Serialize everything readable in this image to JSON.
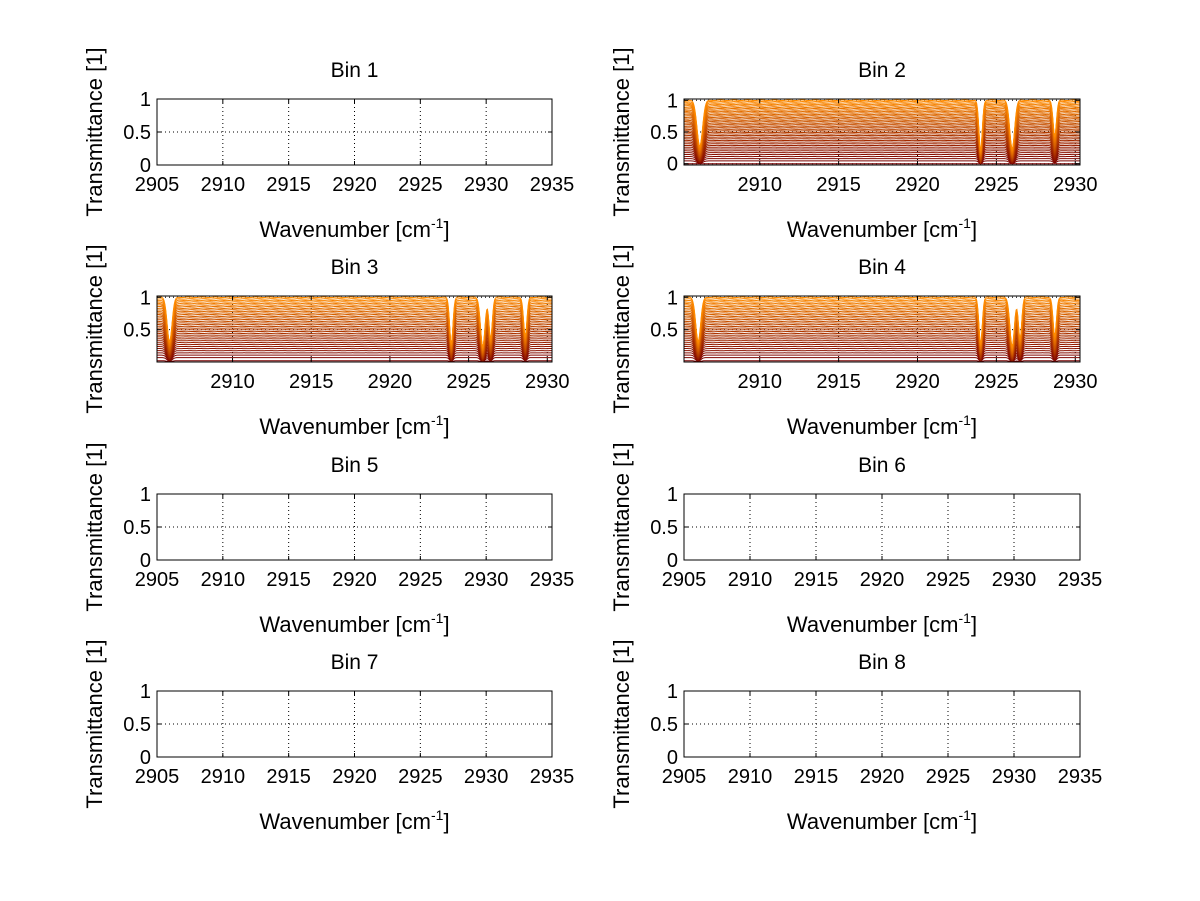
{
  "figure": {
    "background": "#ffffff",
    "colors": {
      "axis": "#000000",
      "low": "#7a0000",
      "high": "#ff8c00"
    }
  },
  "chart_data": [
    {
      "title": "Bin 1",
      "type": "line",
      "xlabel_main": "Wavenumber [cm",
      "xlabel_sup": "-1",
      "xlabel_end": "]",
      "ylabel": "Transmittance [1]",
      "xlim": [
        2905,
        2935
      ],
      "ylim": [
        0,
        1
      ],
      "xticks": [
        2905,
        2910,
        2915,
        2920,
        2925,
        2930,
        2935
      ],
      "yticks": [
        0,
        0.5,
        1
      ],
      "xtick_labels": [
        "2905",
        "2910",
        "2915",
        "2920",
        "2925",
        "2930",
        "2935"
      ],
      "ytick_labels": [
        "0",
        "0.5",
        "1"
      ],
      "series": []
    },
    {
      "title": "Bin 2",
      "type": "line",
      "xlabel_main": "Wavenumber [cm",
      "xlabel_sup": "-1",
      "xlabel_end": "]",
      "ylabel": "Transmittance [1]",
      "xlim": [
        2905.2,
        2930.3
      ],
      "ylim": [
        -0.02,
        1.02
      ],
      "xticks": [
        2910,
        2915,
        2920,
        2925,
        2930
      ],
      "yticks": [
        0,
        0.5,
        1
      ],
      "xtick_labels": [
        "2910",
        "2915",
        "2920",
        "2925",
        "2930"
      ],
      "ytick_labels": [
        "0",
        "0.5",
        "1"
      ],
      "series": {
        "count": 40,
        "min_level": 0.0,
        "max_level": 1.0,
        "absorption_lines": [
          {
            "center": 2906.2,
            "depth": 0.9,
            "width": 0.25
          },
          {
            "center": 2924.0,
            "depth": 1.0,
            "width": 0.15
          },
          {
            "center": 2926.0,
            "depth": 0.95,
            "width": 0.22
          },
          {
            "center": 2928.7,
            "depth": 0.7,
            "width": 0.15
          }
        ]
      }
    },
    {
      "title": "Bin 3",
      "type": "line",
      "xlabel_main": "Wavenumber [cm",
      "xlabel_sup": "-1",
      "xlabel_end": "]",
      "ylabel": "Transmittance [1]",
      "xlim": [
        2905.2,
        2930.3
      ],
      "ylim": [
        0.0,
        1.02
      ],
      "xticks": [
        2910,
        2915,
        2920,
        2925,
        2930
      ],
      "yticks": [
        0.5,
        1
      ],
      "xtick_labels": [
        "2910",
        "2915",
        "2920",
        "2925",
        "2930"
      ],
      "ytick_labels": [
        "0.5",
        "1"
      ],
      "series": {
        "count": 36,
        "min_level": 0.02,
        "max_level": 1.0,
        "absorption_lines": [
          {
            "center": 2906.0,
            "depth": 0.85,
            "width": 0.22
          },
          {
            "center": 2923.9,
            "depth": 0.9,
            "width": 0.15
          },
          {
            "center": 2925.9,
            "depth": 0.95,
            "width": 0.2
          },
          {
            "center": 2926.4,
            "depth": 0.8,
            "width": 0.15
          },
          {
            "center": 2928.6,
            "depth": 0.75,
            "width": 0.15
          }
        ]
      }
    },
    {
      "title": "Bin 4",
      "type": "line",
      "xlabel_main": "Wavenumber [cm",
      "xlabel_sup": "-1",
      "xlabel_end": "]",
      "ylabel": "Transmittance [1]",
      "xlim": [
        2905.2,
        2930.3
      ],
      "ylim": [
        0.0,
        1.02
      ],
      "xticks": [
        2910,
        2915,
        2920,
        2925,
        2930
      ],
      "yticks": [
        0.5,
        1
      ],
      "xtick_labels": [
        "2910",
        "2915",
        "2920",
        "2925",
        "2930"
      ],
      "ytick_labels": [
        "0.5",
        "1"
      ],
      "series": {
        "count": 36,
        "min_level": 0.02,
        "max_level": 1.0,
        "absorption_lines": [
          {
            "center": 2906.1,
            "depth": 0.85,
            "width": 0.22
          },
          {
            "center": 2924.0,
            "depth": 0.9,
            "width": 0.15
          },
          {
            "center": 2926.0,
            "depth": 0.95,
            "width": 0.2
          },
          {
            "center": 2926.5,
            "depth": 0.8,
            "width": 0.15
          },
          {
            "center": 2928.7,
            "depth": 0.75,
            "width": 0.15
          }
        ]
      }
    },
    {
      "title": "Bin 5",
      "type": "line",
      "xlabel_main": "Wavenumber [cm",
      "xlabel_sup": "-1",
      "xlabel_end": "]",
      "ylabel": "Transmittance [1]",
      "xlim": [
        2905,
        2935
      ],
      "ylim": [
        0,
        1
      ],
      "xticks": [
        2905,
        2910,
        2915,
        2920,
        2925,
        2930,
        2935
      ],
      "yticks": [
        0,
        0.5,
        1
      ],
      "xtick_labels": [
        "2905",
        "2910",
        "2915",
        "2920",
        "2925",
        "2930",
        "2935"
      ],
      "ytick_labels": [
        "0",
        "0.5",
        "1"
      ],
      "series": []
    },
    {
      "title": "Bin 6",
      "type": "line",
      "xlabel_main": "Wavenumber [cm",
      "xlabel_sup": "-1",
      "xlabel_end": "]",
      "ylabel": "Transmittance [1]",
      "xlim": [
        2905,
        2935
      ],
      "ylim": [
        0,
        1
      ],
      "xticks": [
        2905,
        2910,
        2915,
        2920,
        2925,
        2930,
        2935
      ],
      "yticks": [
        0,
        0.5,
        1
      ],
      "xtick_labels": [
        "2905",
        "2910",
        "2915",
        "2920",
        "2925",
        "2930",
        "2935"
      ],
      "ytick_labels": [
        "0",
        "0.5",
        "1"
      ],
      "series": []
    },
    {
      "title": "Bin 7",
      "type": "line",
      "xlabel_main": "Wavenumber [cm",
      "xlabel_sup": "-1",
      "xlabel_end": "]",
      "ylabel": "Transmittance [1]",
      "xlim": [
        2905,
        2935
      ],
      "ylim": [
        0,
        1
      ],
      "xticks": [
        2905,
        2910,
        2915,
        2920,
        2925,
        2930,
        2935
      ],
      "yticks": [
        0,
        0.5,
        1
      ],
      "xtick_labels": [
        "2905",
        "2910",
        "2915",
        "2920",
        "2925",
        "2930",
        "2935"
      ],
      "ytick_labels": [
        "0",
        "0.5",
        "1"
      ],
      "series": []
    },
    {
      "title": "Bin 8",
      "type": "line",
      "xlabel_main": "Wavenumber [cm",
      "xlabel_sup": "-1",
      "xlabel_end": "]",
      "ylabel": "Transmittance [1]",
      "xlim": [
        2905,
        2935
      ],
      "ylim": [
        0,
        1
      ],
      "xticks": [
        2905,
        2910,
        2915,
        2920,
        2925,
        2930,
        2935
      ],
      "yticks": [
        0,
        0.5,
        1
      ],
      "xtick_labels": [
        "2905",
        "2910",
        "2915",
        "2920",
        "2925",
        "2930",
        "2935"
      ],
      "ytick_labels": [
        "0",
        "0.5",
        "1"
      ],
      "series": []
    }
  ]
}
